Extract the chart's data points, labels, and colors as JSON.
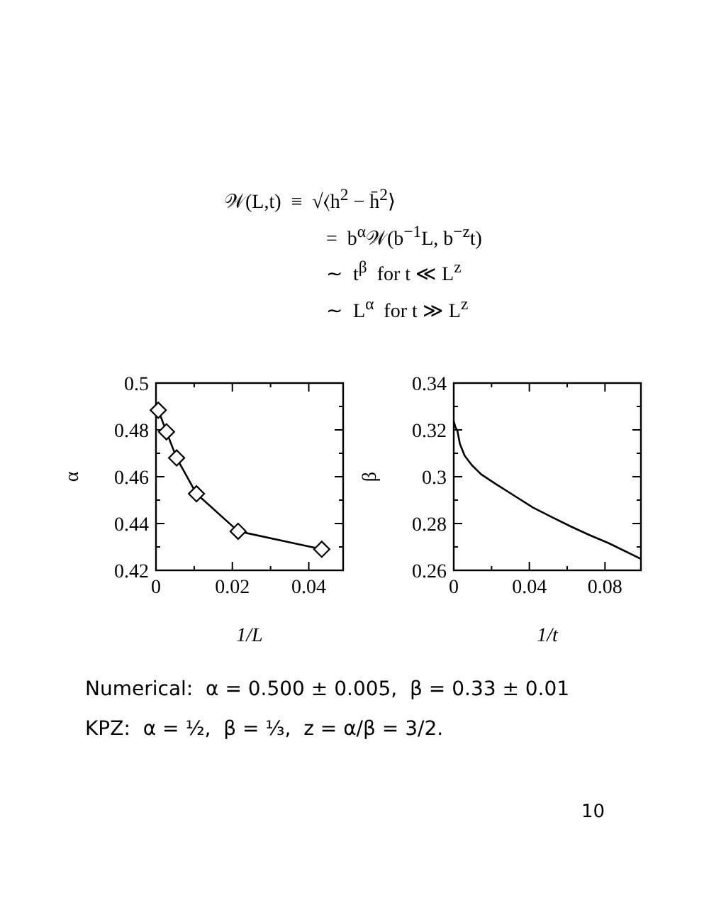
{
  "chart_data": [
    {
      "type": "other",
      "annotations": [
        "𝒲(L,t)  ≡  √⟨h$^{2}$ − h̄$^{2}$⟩",
        "=  b$^{α}$𝒲(b$^{−1}$L, b$^{−z}$t)",
        "∼  t$^{β}$  for t ≪ L$^{z}$",
        "∼  L$^{α}$  for t ≫ L$^{z}$"
      ]
    },
    {
      "type": "line",
      "xlabel": "1/L",
      "ylabel": "α",
      "marker": "diamond",
      "color": "#000000",
      "x": [
        0.0006,
        0.00275,
        0.0054,
        0.0106,
        0.0215,
        0.0434
      ],
      "values": [
        0.4884,
        0.4792,
        0.468,
        0.4527,
        0.4367,
        0.429
      ],
      "xlim": [
        0,
        0.049
      ],
      "ylim": [
        0.42,
        0.5
      ],
      "xticks": [
        0,
        {
          "value": 0.01,
          "label": null
        },
        0.02,
        {
          "value": 0.03,
          "label": null
        },
        0.04
      ],
      "yticks": [
        0.42,
        {
          "value": 0.43,
          "label": null
        },
        0.44,
        {
          "value": 0.45,
          "label": null
        },
        0.46,
        {
          "value": 0.47,
          "label": null
        },
        0.48,
        {
          "value": 0.49,
          "label": null
        },
        0.5
      ]
    },
    {
      "type": "line",
      "xlabel": "1/t",
      "ylabel": "β",
      "color": "#000000",
      "x": [
        0,
        0.00075,
        0.002,
        0.00325,
        0.00575,
        0.0095,
        0.0145,
        0.022,
        0.032,
        0.042,
        0.052,
        0.062,
        0.072,
        0.082,
        0.099
      ],
      "values": [
        0.3238,
        0.3215,
        0.3193,
        0.314,
        0.309,
        0.305,
        0.301,
        0.297,
        0.2919,
        0.2868,
        0.2827,
        0.2787,
        0.275,
        0.2716,
        0.2649
      ],
      "xlim": [
        0,
        0.099
      ],
      "ylim": [
        0.26,
        0.34
      ],
      "xticks": [
        0,
        {
          "value": 0.02,
          "label": null
        },
        0.04,
        {
          "value": 0.06,
          "label": null
        },
        0.08
      ],
      "yticks": [
        0.26,
        {
          "value": 0.27,
          "label": null
        },
        0.28,
        {
          "value": 0.29,
          "label": null
        },
        0.3,
        {
          "value": 0.31,
          "label": null
        },
        0.32,
        {
          "value": 0.33,
          "label": null
        },
        0.34
      ]
    },
    {
      "type": "other",
      "annotations": [
        "Numerical:  α = 0.500 ± 0.005,  β = 0.33 ± 0.01",
        "KPZ:  α = ½,  β = ⅓,  z = α/β = 3/2."
      ]
    },
    {
      "type": "other",
      "annotations": [
        "10"
      ]
    }
  ]
}
